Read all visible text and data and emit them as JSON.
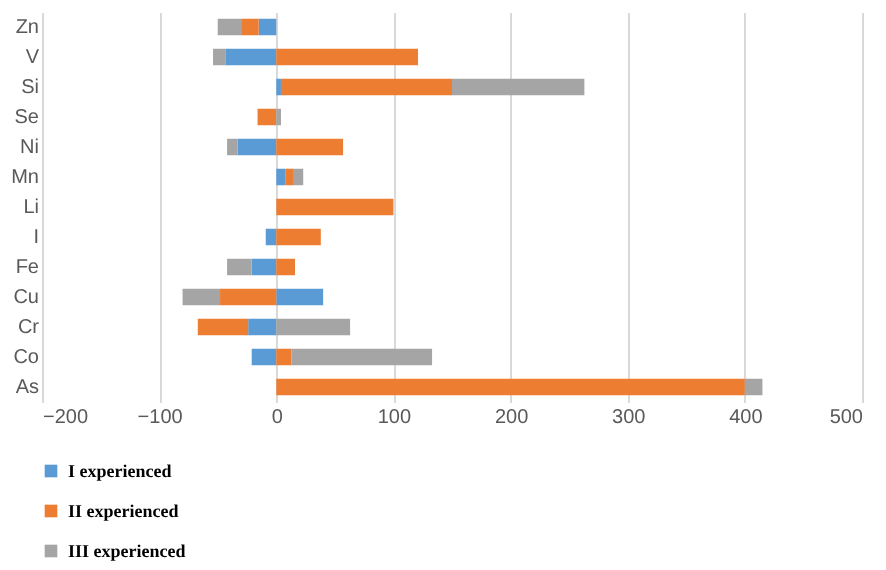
{
  "chart_data": {
    "type": "bar",
    "orientation": "horizontal",
    "stacked": true,
    "categories": [
      "Zn",
      "V",
      "Si",
      "Se",
      "Ni",
      "Mn",
      "Li",
      "I",
      "Fe",
      "Cu",
      "Cr",
      "Co",
      "As"
    ],
    "series": [
      {
        "name": "I experienced",
        "color": "#5b9bd5",
        "values": [
          -15,
          -43,
          4,
          0,
          -33,
          8,
          0,
          -9,
          -21,
          40,
          -24,
          -21,
          0
        ]
      },
      {
        "name": "II experienced",
        "color": "#ed7d31",
        "values": [
          -15,
          121,
          146,
          -16,
          57,
          7,
          100,
          38,
          16,
          -48,
          -43,
          13,
          400
        ]
      },
      {
        "name": "III experienced",
        "color": "#a5a5a5",
        "values": [
          -20,
          -11,
          113,
          4,
          -9,
          8,
          0,
          0,
          -21,
          -32,
          63,
          120,
          15
        ]
      }
    ],
    "xlim": [
      -200,
      500
    ],
    "xticks": [
      -200,
      -100,
      0,
      100,
      200,
      300,
      400,
      500
    ],
    "grid": "x",
    "legend": "bottom"
  }
}
